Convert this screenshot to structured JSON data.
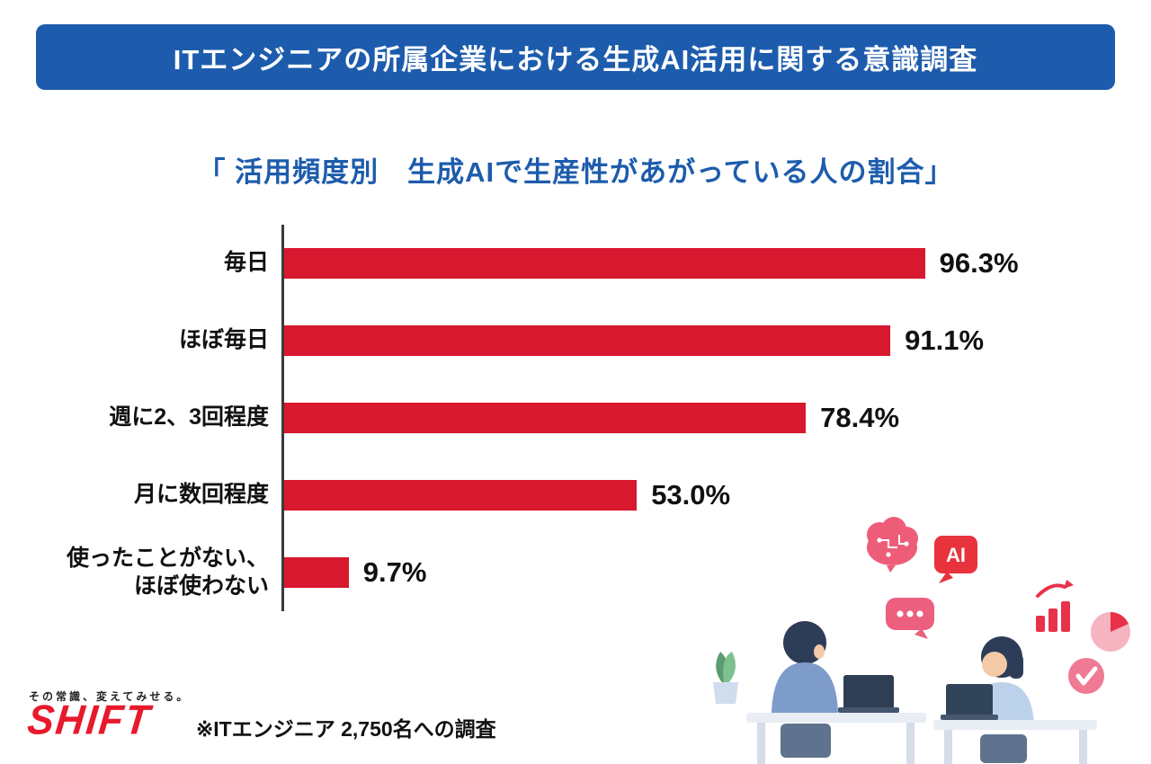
{
  "header": {
    "title": "ITエンジニアの所属企業における生成AI活用に関する意識調査"
  },
  "subtitle": "「 活用頻度別　生成AIで生産性があがっている人の割合」",
  "chart_data": {
    "type": "bar",
    "orientation": "horizontal",
    "title": "活用頻度別 生成AIで生産性があがっている人の割合",
    "categories": [
      "毎日",
      "ほぼ毎日",
      "週に2、3回程度",
      "月に数回程度",
      "使ったことがない、\nほぼ使わない"
    ],
    "values": [
      96.3,
      91.1,
      78.4,
      53.0,
      9.7
    ],
    "value_labels": [
      "96.3%",
      "91.1%",
      "78.4%",
      "53.0%",
      "9.7%"
    ],
    "xlim": [
      0,
      100
    ],
    "bar_color": "#d7182e",
    "legend": "none",
    "grid": "off"
  },
  "footer": {
    "tagline": "その常識、変えてみせる。",
    "logo": "SHIFT",
    "note": "※ITエンジニア 2,750名への調査"
  },
  "illustration": {
    "ai_badge": "AI"
  },
  "colors": {
    "header_bg": "#1d5cac",
    "subtitle_text": "#1d5cac",
    "bar_red": "#d7182e",
    "logo_red": "#e8192c",
    "text_dark": "#111111",
    "pink_accent": "#ee5d78"
  }
}
